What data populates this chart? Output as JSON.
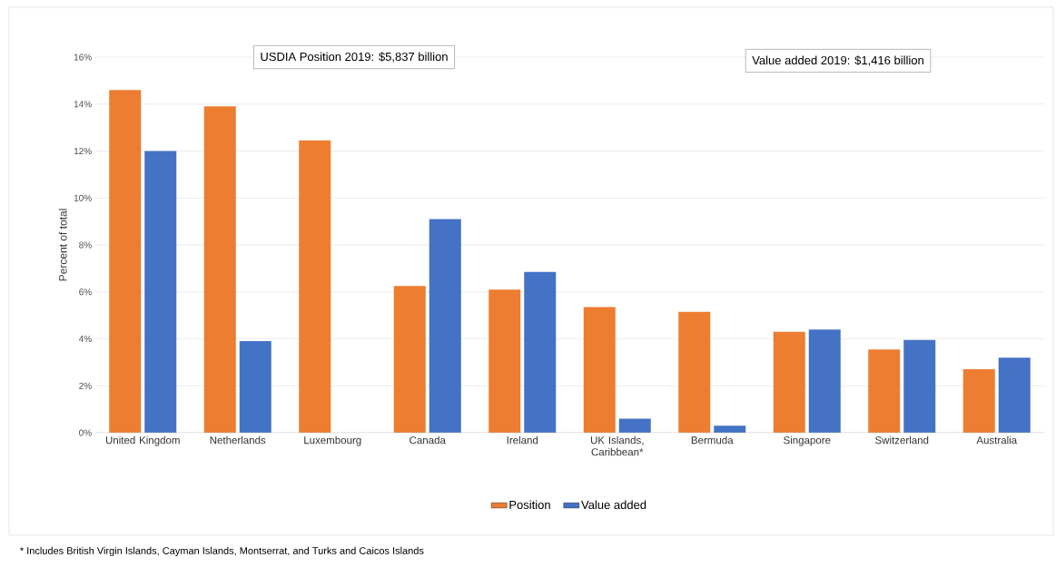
{
  "chart_data": {
    "type": "bar",
    "categories": [
      "United Kingdom",
      "Netherlands",
      "Luxembourg",
      "Canada",
      "Ireland",
      "UK Islands, Caribbean*",
      "Bermuda",
      "Singapore",
      "Switzerland",
      "Australia"
    ],
    "series": [
      {
        "name": "Position",
        "color": "#ed7d31",
        "values": [
          14.6,
          13.9,
          12.45,
          6.25,
          6.1,
          5.35,
          5.15,
          4.3,
          3.55,
          2.7
        ]
      },
      {
        "name": "Value added",
        "color": "#4472c4",
        "values": [
          12.0,
          3.9,
          null,
          9.1,
          6.85,
          0.6,
          0.3,
          4.4,
          3.95,
          3.2
        ]
      }
    ],
    "ylabel": "Percent of total",
    "ylim": [
      0,
      16
    ],
    "yticks": [
      {
        "value": 0,
        "label": "0%"
      },
      {
        "value": 2,
        "label": "2%"
      },
      {
        "value": 4,
        "label": "4%"
      },
      {
        "value": 6,
        "label": "6%"
      },
      {
        "value": 8,
        "label": "8%"
      },
      {
        "value": 10,
        "label": "10%"
      },
      {
        "value": 12,
        "label": "12%"
      },
      {
        "value": 14,
        "label": "14%"
      },
      {
        "value": 16,
        "label": "16%"
      }
    ],
    "grid": "y",
    "legend": "bottom",
    "annotations": [
      "USDIA Position 2019: $5,837 billion",
      "Value added 2019: $1,416 billion",
      "* Includes British Virgin Islands, Cayman Islands, Montserrat, and Turks and Caicos Islands"
    ]
  }
}
